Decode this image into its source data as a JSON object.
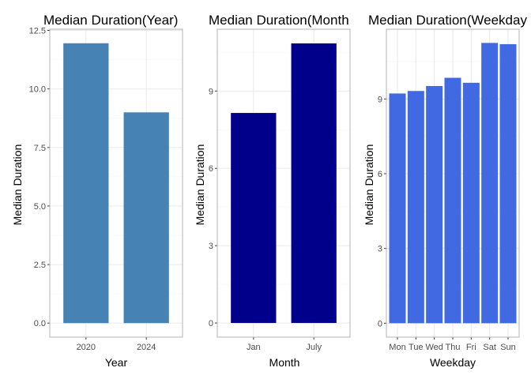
{
  "chart_data": [
    {
      "type": "bar",
      "title": "Median Duration(Year)",
      "xlabel": "Year",
      "ylabel": "Median Duration",
      "categories": [
        "2020",
        "2024"
      ],
      "values": [
        11.95,
        9.0
      ],
      "ylim": [
        -0.6,
        12.55
      ],
      "yticks": [
        0,
        2.5,
        5,
        7.5,
        10,
        12.5
      ],
      "ytick_labels": [
        "0.0",
        "2.5",
        "5.0",
        "7.5",
        "10.0",
        "12.5"
      ],
      "bar_color": "#4682b4",
      "grid": true
    },
    {
      "type": "bar",
      "title": "Median Duration(Month",
      "xlabel": "Month",
      "ylabel": "Median Duration",
      "categories": [
        "Jan",
        "July"
      ],
      "values": [
        8.15,
        10.85
      ],
      "ylim": [
        -0.55,
        11.4
      ],
      "yticks": [
        0,
        3,
        6,
        9
      ],
      "ytick_labels": [
        "0",
        "3",
        "6",
        "9"
      ],
      "bar_color": "#00008b",
      "grid": true
    },
    {
      "type": "bar",
      "title": "Median Duration(Weekday",
      "xlabel": "Weekday",
      "ylabel": "Median Duration",
      "categories": [
        "Mon",
        "Tue",
        "Wed",
        "Thu",
        "Fri",
        "Sat",
        "Sun"
      ],
      "values": [
        9.22,
        9.32,
        9.52,
        9.85,
        9.65,
        11.25,
        11.2
      ],
      "ylim": [
        -0.56,
        11.8
      ],
      "yticks": [
        0,
        3,
        6,
        9
      ],
      "ytick_labels": [
        "0",
        "3",
        "6",
        "9"
      ],
      "bar_color": "#4169e1",
      "grid": true
    }
  ]
}
